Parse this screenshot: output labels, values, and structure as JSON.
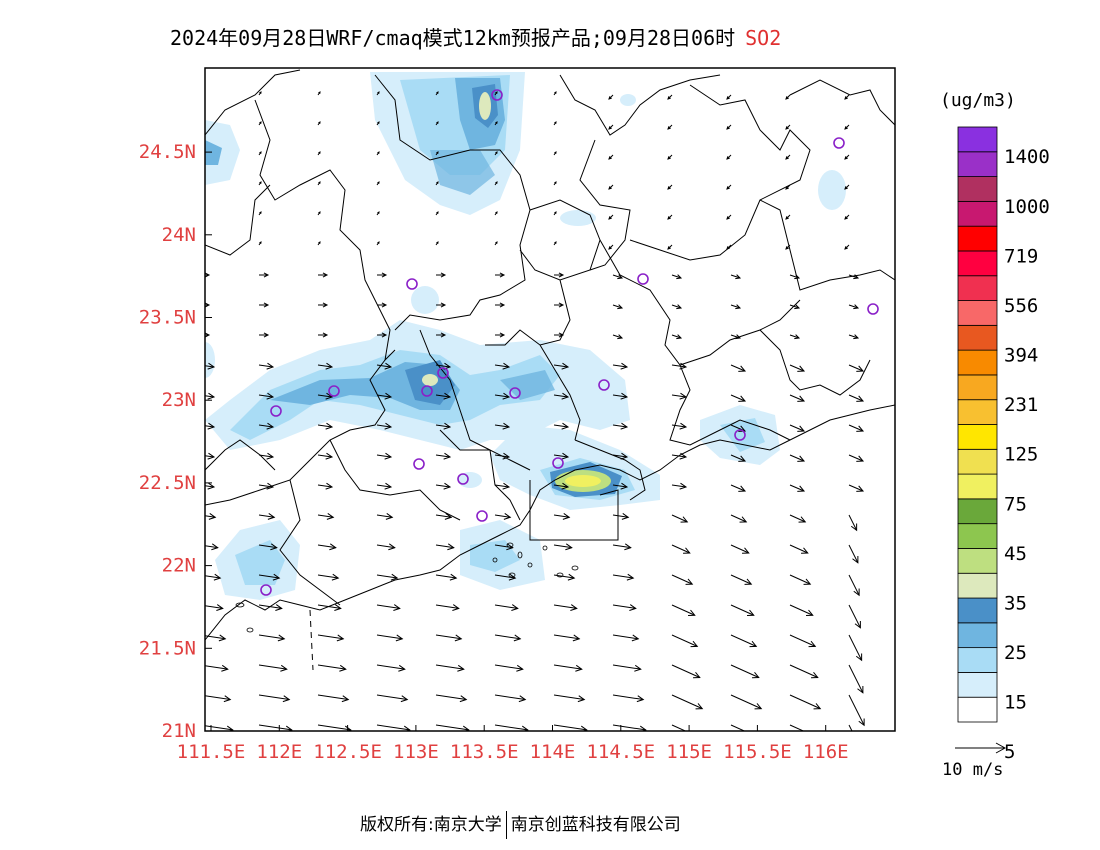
{
  "header": {
    "title": "2024年09月28日WRF/cmaq模式12km预报产品;09月28日06时",
    "species": "SO2"
  },
  "axes": {
    "x_ticks": [
      "111.5E",
      "112E",
      "112.5E",
      "113E",
      "113.5E",
      "114E",
      "114.5E",
      "115E",
      "115.5E",
      "116E"
    ],
    "y_ticks": [
      "21N",
      "21.5N",
      "22N",
      "22.5N",
      "23N",
      "23.5N",
      "24N",
      "24.5N"
    ],
    "tick_color": "#e04040"
  },
  "legend": {
    "unit": "(ug/m3)",
    "labels": [
      "1400",
      "1000",
      "719",
      "556",
      "394",
      "231",
      "125",
      "75",
      "45",
      "35",
      "25",
      "15",
      "5"
    ],
    "colors": [
      "#ffffff",
      "#d6eefb",
      "#a9dcf5",
      "#6fb5e0",
      "#4a90c8",
      "#dde9bd",
      "#bedf80",
      "#8dc64f",
      "#6aa83a",
      "#f0f060",
      "#f0e050",
      "#ffe600",
      "#f8c030",
      "#f8a820",
      "#f88a00",
      "#e85820",
      "#f86868",
      "#f03050",
      "#ff0040",
      "#ff0000",
      "#c81870",
      "#b03060",
      "#9a30c8",
      "#8a30e0"
    ]
  },
  "wind_reference": {
    "label": "10 m/s"
  },
  "footer": {
    "copyright": "版权所有:南京大学",
    "company": "南京创蓝科技有限公司"
  },
  "map": {
    "stations_color": "#8a20c8",
    "frame_color": "#000000"
  }
}
